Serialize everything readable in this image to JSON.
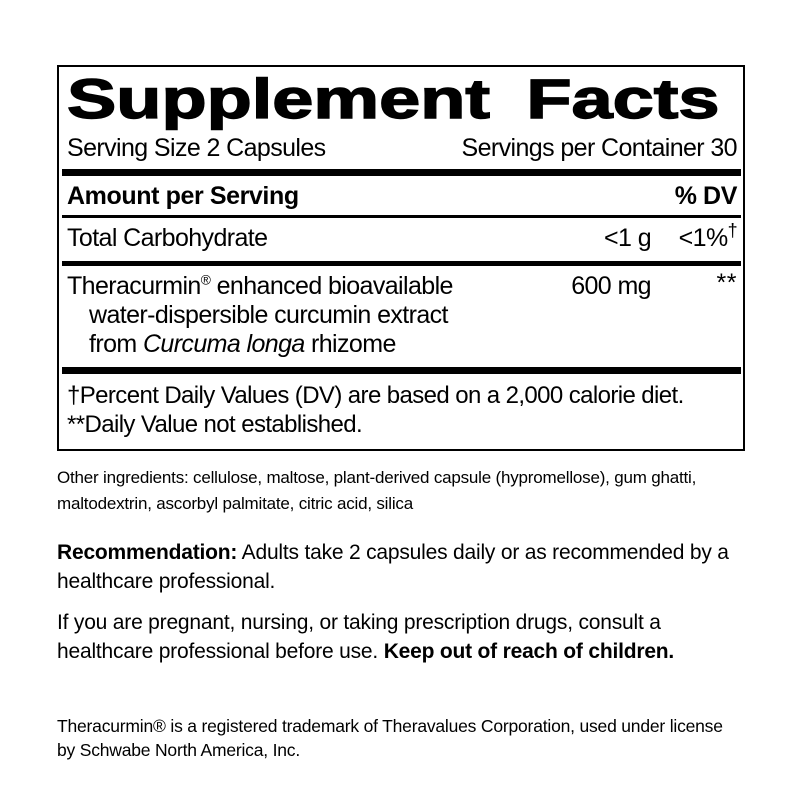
{
  "colors": {
    "ink": "#000000",
    "background": "#ffffff"
  },
  "supplement_facts": {
    "title": "Supplement Facts",
    "serving_size": "Serving Size 2 Capsules",
    "servings_per_container": "Servings per Container 30",
    "column_headers": {
      "amount_per_serving": "Amount per Serving",
      "percent_dv": "% DV"
    },
    "rows": [
      {
        "nutrient": "Total Carbohydrate",
        "amount": "<1 g",
        "percent_dv": "<1%",
        "percent_dv_footnote_mark": "†"
      }
    ],
    "ingredient_row": {
      "name": "Theracurmin",
      "registered_mark": "®",
      "name_suffix": " enhanced bioavailable",
      "description_line2": "water-dispersible curcumin extract",
      "description_line3_prefix": "from ",
      "botanical_name": "Curcuma longa",
      "description_line3_suffix": " rhizome",
      "amount": "600 mg",
      "percent_dv_mark": "**"
    },
    "footnotes": {
      "dv_basis": "†Percent Daily Values (DV) are based on a 2,000 calorie diet.",
      "not_established": "**Daily Value not established."
    }
  },
  "other_ingredients": "Other ingredients: cellulose, maltose, plant-derived capsule (hypromellose), gum ghatti, maltodextrin, ascorbyl palmitate, citric acid, silica",
  "recommendation": {
    "label": "Recommendation:",
    "text": " Adults take 2 capsules daily or as recommended by a healthcare professional."
  },
  "warning": {
    "text": "If you are pregnant, nursing, or taking prescription drugs, consult a healthcare professional before use. ",
    "emphasis": "Keep out of reach of children."
  },
  "trademark_notice": "Theracurmin® is a registered trademark of Theravalues Corporation, used under license by Schwabe North America, Inc."
}
